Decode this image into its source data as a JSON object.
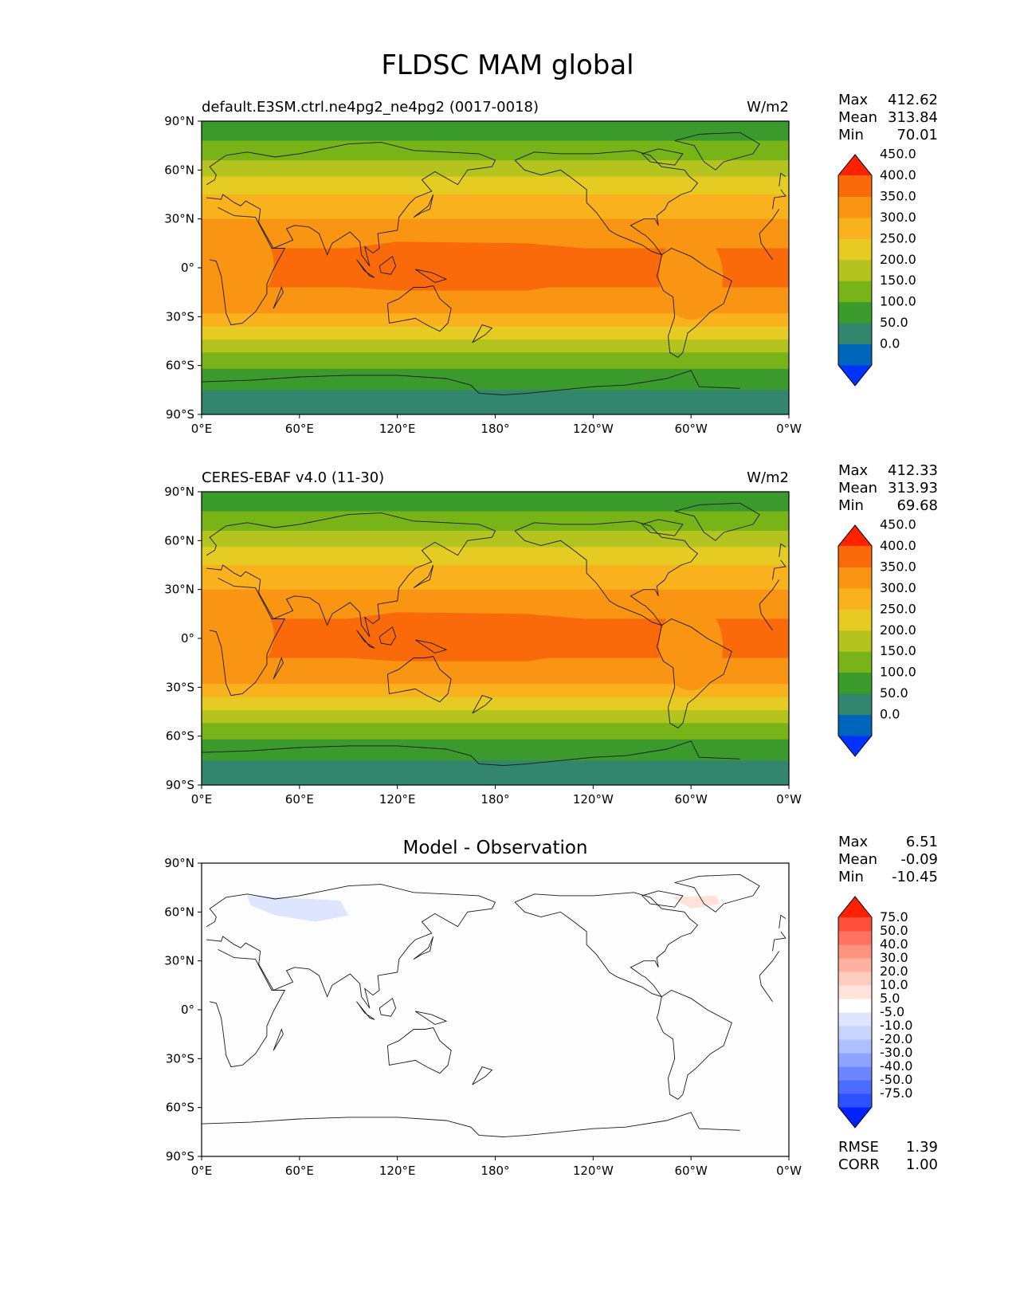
{
  "title": "FLDSC MAM global",
  "colors": {
    "main_levels": [
      "#0033ff",
      "#0066bb",
      "#33866e",
      "#3a9a2c",
      "#78b418",
      "#b4c31e",
      "#e6cc22",
      "#fab11e",
      "#fa9413",
      "#fa6a0a",
      "#ff2200"
    ],
    "diff_levels": [
      "#0022ff",
      "#2c52ff",
      "#4c6cff",
      "#6b86ff",
      "#8fa4ff",
      "#adbfff",
      "#cad5ff",
      "#dde5ff",
      "#ffffff",
      "#ffe2da",
      "#ffcdc0",
      "#ffb2a0",
      "#ff9380",
      "#ff7360",
      "#ff4e3a",
      "#ff2200"
    ]
  },
  "axis_ticks": {
    "lon": [
      "0°E",
      "60°E",
      "120°E",
      "180°",
      "120°W",
      "60°W",
      "0°W"
    ],
    "lat": [
      "90°N",
      "60°N",
      "30°N",
      "0°",
      "30°S",
      "60°S",
      "90°S"
    ]
  },
  "panels": [
    {
      "left_title": "default.E3SM.ctrl.ne4pg2_ne4pg2 (0017-0018)",
      "center_title": "",
      "right_title": "W/m2",
      "stats": [
        {
          "label": "Max",
          "value": "412.62"
        },
        {
          "label": "Mean",
          "value": "313.84"
        },
        {
          "label": "Min",
          "value": "70.01"
        }
      ],
      "colorbar_labels": [
        "0.0",
        "50.0",
        "100.0",
        "150.0",
        "200.0",
        "250.0",
        "300.0",
        "350.0",
        "400.0",
        "450.0"
      ],
      "footer_stats": []
    },
    {
      "left_title": "CERES-EBAF v4.0 (11-30)",
      "center_title": "",
      "right_title": "W/m2",
      "stats": [
        {
          "label": "Max",
          "value": "412.33"
        },
        {
          "label": "Mean",
          "value": "313.93"
        },
        {
          "label": "Min",
          "value": "69.68"
        }
      ],
      "colorbar_labels": [
        "0.0",
        "50.0",
        "100.0",
        "150.0",
        "200.0",
        "250.0",
        "300.0",
        "350.0",
        "400.0",
        "450.0"
      ],
      "footer_stats": []
    },
    {
      "left_title": "",
      "center_title": "Model - Observation",
      "right_title": "",
      "stats": [
        {
          "label": "Max",
          "value": "6.51"
        },
        {
          "label": "Mean",
          "value": "-0.09"
        },
        {
          "label": "Min",
          "value": "-10.45"
        }
      ],
      "colorbar_labels": [
        "-75.0",
        "-50.0",
        "-40.0",
        "-30.0",
        "-20.0",
        "-10.0",
        "-5.0",
        "5.0",
        "10.0",
        "20.0",
        "30.0",
        "40.0",
        "50.0",
        "75.0"
      ],
      "footer_stats": [
        {
          "label": "RMSE",
          "value": "1.39"
        },
        {
          "label": "CORR",
          "value": "1.00"
        }
      ]
    }
  ],
  "chart_data": [
    {
      "type": "heatmap",
      "title": "default.E3SM.ctrl.ne4pg2_ne4pg2 (0017-0018)",
      "units": "W/m2",
      "projection": "plate carree, central longitude 180",
      "x_range": [
        0,
        360
      ],
      "y_range": [
        -90,
        90
      ],
      "contour_levels": [
        0,
        50,
        100,
        150,
        200,
        250,
        300,
        350,
        400,
        450
      ],
      "zonal_band_approx_W_m2": [
        {
          "lat": -90,
          "value": 110
        },
        {
          "lat": -60,
          "value": 215
        },
        {
          "lat": -45,
          "value": 265
        },
        {
          "lat": -30,
          "value": 320
        },
        {
          "lat": 0,
          "value": 400
        },
        {
          "lat": 30,
          "value": 320
        },
        {
          "lat": 45,
          "value": 265
        },
        {
          "lat": 60,
          "value": 215
        },
        {
          "lat": 90,
          "value": 130
        }
      ],
      "stats": {
        "max": 412.62,
        "mean": 313.84,
        "min": 70.01
      }
    },
    {
      "type": "heatmap",
      "title": "CERES-EBAF v4.0 (11-30)",
      "units": "W/m2",
      "projection": "plate carree, central longitude 180",
      "x_range": [
        0,
        360
      ],
      "y_range": [
        -90,
        90
      ],
      "contour_levels": [
        0,
        50,
        100,
        150,
        200,
        250,
        300,
        350,
        400,
        450
      ],
      "zonal_band_approx_W_m2": [
        {
          "lat": -90,
          "value": 110
        },
        {
          "lat": -60,
          "value": 215
        },
        {
          "lat": -45,
          "value": 265
        },
        {
          "lat": -30,
          "value": 320
        },
        {
          "lat": 0,
          "value": 400
        },
        {
          "lat": 30,
          "value": 320
        },
        {
          "lat": 45,
          "value": 265
        },
        {
          "lat": 60,
          "value": 215
        },
        {
          "lat": 90,
          "value": 130
        }
      ],
      "stats": {
        "max": 412.33,
        "mean": 313.93,
        "min": 69.68
      }
    },
    {
      "type": "heatmap",
      "title": "Model - Observation",
      "projection": "plate carree, central longitude 180",
      "x_range": [
        0,
        360
      ],
      "y_range": [
        -90,
        90
      ],
      "contour_levels": [
        -75,
        -50,
        -40,
        -30,
        -20,
        -10,
        -5,
        5,
        10,
        20,
        30,
        40,
        50,
        75
      ],
      "anomalies": [
        {
          "region": "northern Eurasia (approx 25°E-90°E, 55°N-70°N)",
          "range": "-10 to -5"
        },
        {
          "region": "Greenland / Baffin (approx 70°W-40°W, 62°N-72°N)",
          "range": "5 to 10"
        }
      ],
      "stats": {
        "max": 6.51,
        "mean": -0.09,
        "min": -10.45,
        "rmse": 1.39,
        "corr": 1.0
      }
    }
  ]
}
